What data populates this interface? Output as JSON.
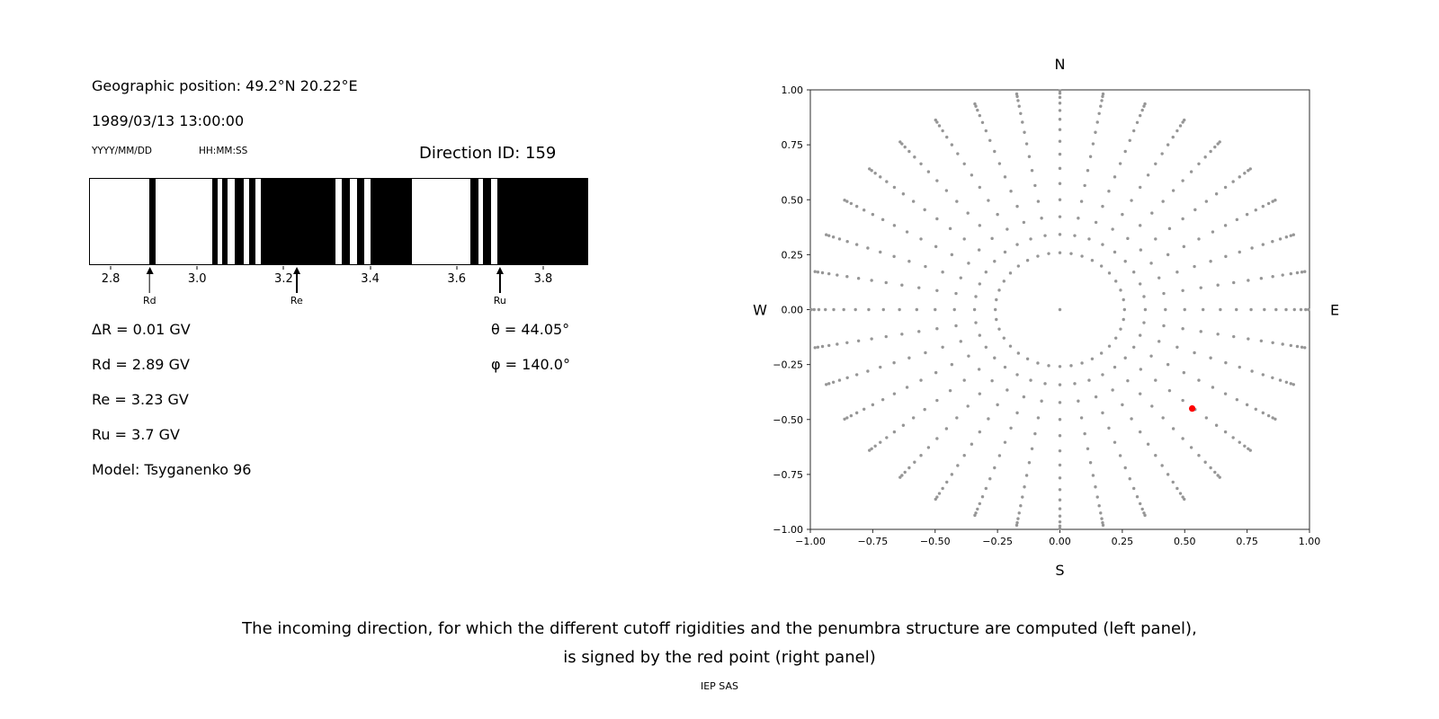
{
  "header": {
    "geo_position": "Geographic position: 49.2°N 20.22°E",
    "datetime": "1989/03/13 13:00:00",
    "date_format": "YYYY/MM/DD",
    "time_format": "HH:MM:SS",
    "direction_id": "Direction ID: 159"
  },
  "info": {
    "delta_r": "ΔR = 0.01 GV",
    "rd": "Rd = 2.89 GV",
    "re": "Re = 3.23 GV",
    "ru": "Ru = 3.7 GV",
    "model": "Model: Tsyganenko 96",
    "theta": "θ = 44.05°",
    "phi": "φ = 140.0°"
  },
  "caption": {
    "line1": "The incoming direction, for which the different cutoff rigidities and the penumbra structure are computed (left panel),",
    "line2": "is signed by the red point (right panel)",
    "credit": "IEP SAS"
  },
  "chart_data": [
    {
      "id": "penumbra",
      "type": "bar",
      "x_range": [
        2.75,
        3.9
      ],
      "x_unit": "GV",
      "xticks": [
        2.8,
        3.0,
        3.2,
        3.4,
        3.6,
        3.8
      ],
      "bar_color": "#000000",
      "forbidden_bands_gv": [
        [
          2.888,
          2.902
        ],
        [
          3.032,
          3.046
        ],
        [
          3.056,
          3.068
        ],
        [
          3.084,
          3.106
        ],
        [
          3.118,
          3.132
        ],
        [
          3.146,
          3.317
        ],
        [
          3.332,
          3.352
        ],
        [
          3.368,
          3.384
        ],
        [
          3.398,
          3.494
        ],
        [
          3.63,
          3.648
        ],
        [
          3.658,
          3.678
        ],
        [
          3.692,
          3.9
        ]
      ],
      "markers": [
        {
          "label": "Rd",
          "value": 2.89
        },
        {
          "label": "Re",
          "value": 3.23
        },
        {
          "label": "Ru",
          "value": 3.7
        }
      ]
    },
    {
      "id": "direction_map",
      "type": "scatter",
      "xlim": [
        -1,
        1
      ],
      "ylim": [
        -1,
        1
      ],
      "xtick_values": [
        -1,
        -0.75,
        -0.5,
        -0.25,
        0,
        0.25,
        0.5,
        0.75,
        1
      ],
      "xtick_labels": [
        "−1.00",
        "−0.75",
        "−0.50",
        "−0.25",
        "0.00",
        "0.25",
        "0.50",
        "0.75",
        "1.00"
      ],
      "ytick_values": [
        1,
        0.75,
        0.5,
        0.25,
        0,
        -0.25,
        -0.5,
        -0.75,
        -1
      ],
      "ytick_labels": [
        "1.00",
        "0.75",
        "0.50",
        "0.25",
        "0.00",
        "−0.25",
        "−0.50",
        "−0.75",
        "−1.00"
      ],
      "compass": {
        "north": "N",
        "south": "S",
        "east": "E",
        "west": "W"
      },
      "point_color": "#969696",
      "grid": {
        "azimuth_deg_start": 0,
        "azimuth_deg_step": 10,
        "azimuth_count": 36,
        "zenith_deg_start": 15,
        "zenith_deg_step": 5,
        "zenith_deg_stop": 85,
        "radius_rule": "sin(zenith_deg)"
      },
      "center_point": {
        "x": 0,
        "y": 0
      },
      "highlight": {
        "x": 0.53,
        "y": -0.45,
        "color": "#ff0000"
      }
    }
  ]
}
